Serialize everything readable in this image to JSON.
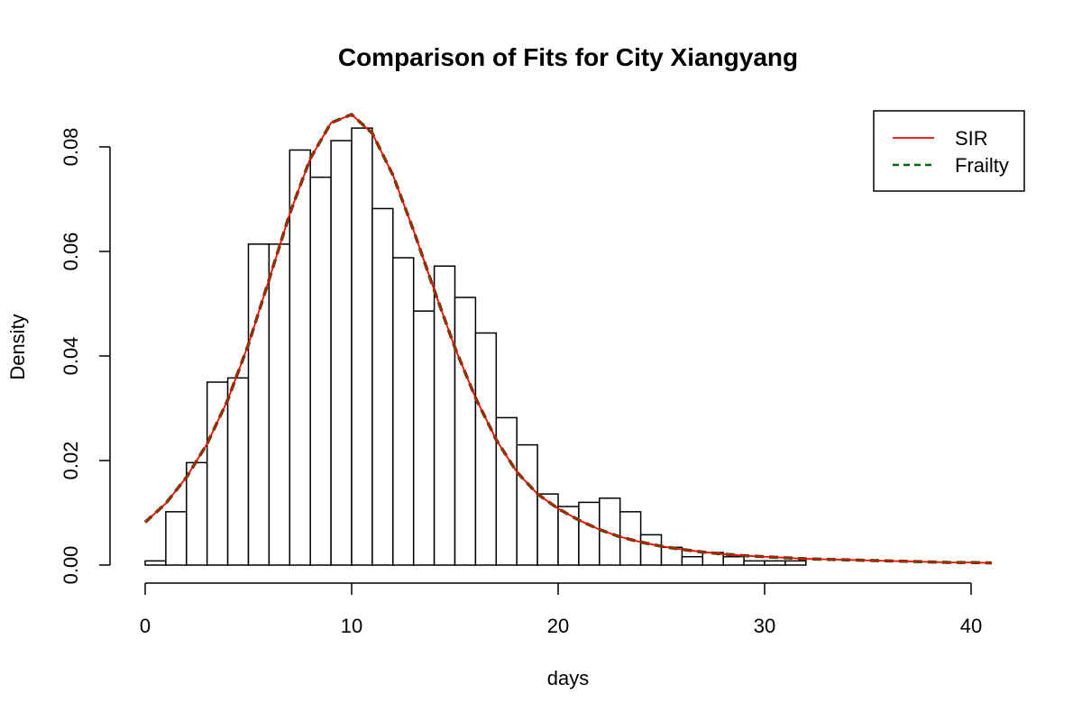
{
  "chart_data": {
    "type": "bar",
    "title": "Comparison of Fits for City Xiangyang",
    "xlabel": "days",
    "ylabel": "Density",
    "xlim": [
      0,
      41
    ],
    "ylim": [
      0,
      0.08
    ],
    "x_ticks": [
      0,
      10,
      20,
      30,
      40
    ],
    "x_tick_labels": [
      "0",
      "10",
      "20",
      "30",
      "40"
    ],
    "y_ticks": [
      0,
      0.02,
      0.04,
      0.06,
      0.08
    ],
    "y_tick_labels": [
      "0.00",
      "0.02",
      "0.04",
      "0.06",
      "0.08"
    ],
    "grid": false,
    "legend_position": "top-right",
    "histogram": {
      "bin_width": 1,
      "bin_starts": [
        0,
        1,
        2,
        3,
        4,
        5,
        6,
        7,
        8,
        9,
        10,
        11,
        12,
        13,
        14,
        15,
        16,
        17,
        18,
        19,
        20,
        21,
        22,
        23,
        24,
        25,
        26,
        27,
        28,
        29,
        30,
        31
      ],
      "values": [
        0.0008,
        0.0102,
        0.0196,
        0.035,
        0.0358,
        0.0614,
        0.0614,
        0.0794,
        0.0742,
        0.0812,
        0.0836,
        0.0682,
        0.0588,
        0.0486,
        0.0572,
        0.0512,
        0.0444,
        0.0282,
        0.023,
        0.0136,
        0.0112,
        0.012,
        0.0128,
        0.0102,
        0.0058,
        0.0034,
        0.0016,
        0.0024,
        0.0016,
        0.0008,
        0.0008,
        0.0008
      ],
      "fill": "#ffffff",
      "stroke": "#000000"
    },
    "series": [
      {
        "name": "SIR",
        "color": "#ff0000",
        "style": "solid",
        "x": [
          0,
          1,
          2,
          3,
          4,
          5,
          6,
          7,
          8,
          9,
          10,
          11,
          12,
          13,
          14,
          15,
          16,
          17,
          18,
          19,
          20,
          21,
          22,
          23,
          24,
          25,
          26,
          27,
          28,
          29,
          30,
          31,
          32,
          33,
          34,
          35,
          36,
          37,
          38,
          39,
          40,
          41
        ],
        "y": [
          0.0082,
          0.0118,
          0.0168,
          0.0232,
          0.0316,
          0.0422,
          0.0546,
          0.0672,
          0.0778,
          0.0846,
          0.0862,
          0.0826,
          0.0746,
          0.064,
          0.0526,
          0.0416,
          0.032,
          0.024,
          0.0178,
          0.0136,
          0.0108,
          0.0086,
          0.0068,
          0.0054,
          0.0044,
          0.0036,
          0.003,
          0.0025,
          0.0021,
          0.0018,
          0.0016,
          0.0014,
          0.0012,
          0.0011,
          0.001,
          0.0009,
          0.0008,
          0.0007,
          0.0006,
          0.0005,
          0.0005,
          0.0004
        ]
      },
      {
        "name": "Frailty",
        "color": "#006400",
        "style": "dashed",
        "x": [
          0,
          1,
          2,
          3,
          4,
          5,
          6,
          7,
          8,
          9,
          10,
          11,
          12,
          13,
          14,
          15,
          16,
          17,
          18,
          19,
          20,
          21,
          22,
          23,
          24,
          25,
          26,
          27,
          28,
          29,
          30,
          31,
          32,
          33,
          34,
          35,
          36,
          37,
          38,
          39,
          40,
          41
        ],
        "y": [
          0.0082,
          0.0118,
          0.0168,
          0.0232,
          0.0316,
          0.0422,
          0.0546,
          0.0672,
          0.0778,
          0.0846,
          0.0862,
          0.0826,
          0.0746,
          0.064,
          0.0526,
          0.0416,
          0.032,
          0.024,
          0.0178,
          0.0136,
          0.0108,
          0.0086,
          0.0068,
          0.0054,
          0.0044,
          0.0036,
          0.003,
          0.0025,
          0.0021,
          0.0018,
          0.0016,
          0.0014,
          0.0012,
          0.0011,
          0.001,
          0.0009,
          0.0008,
          0.0007,
          0.0006,
          0.0005,
          0.0005,
          0.0004
        ]
      }
    ]
  }
}
